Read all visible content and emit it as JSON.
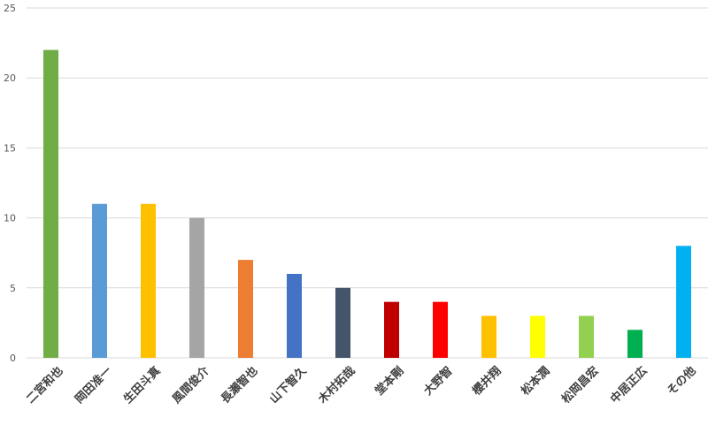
{
  "chart_data": {
    "type": "bar",
    "categories": [
      "二宮和也",
      "岡田准一",
      "生田斗真",
      "風間俊介",
      "長瀬智也",
      "山下智久",
      "木村拓哉",
      "堂本剛",
      "大野智",
      "櫻井翔",
      "松本潤",
      "松岡昌宏",
      "中居正広",
      "その他"
    ],
    "values": [
      22,
      11,
      11,
      10,
      7,
      6,
      5,
      4,
      4,
      3,
      3,
      3,
      2,
      8
    ],
    "colors": [
      "#70ad47",
      "#5b9bd5",
      "#ffc000",
      "#a5a5a5",
      "#ed7d31",
      "#4472c4",
      "#44546a",
      "#c00000",
      "#ff0000",
      "#ffc000",
      "#ffff00",
      "#92d050",
      "#00b050",
      "#00b0f0"
    ],
    "yticks": [
      0,
      5,
      10,
      15,
      20,
      25
    ],
    "ylim": [
      0,
      25
    ],
    "grid": true,
    "legend": "none",
    "title": "",
    "xlabel": "",
    "ylabel": ""
  }
}
